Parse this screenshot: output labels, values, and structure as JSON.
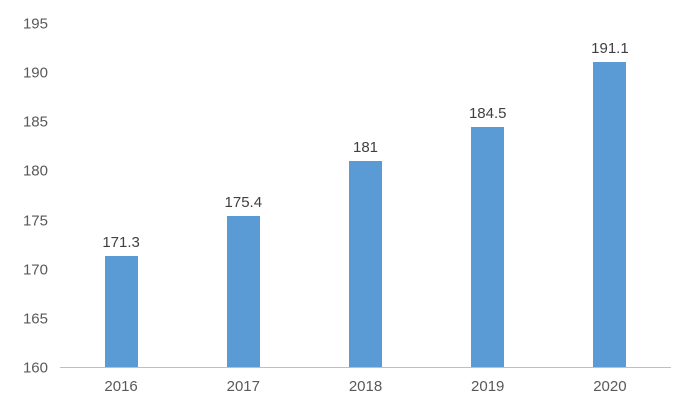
{
  "chart_data": {
    "type": "bar",
    "title": "",
    "categories": [
      "2016",
      "2017",
      "2018",
      "2019",
      "2020"
    ],
    "values": [
      171.3,
      175.4,
      181,
      184.5,
      191.1
    ],
    "value_labels": [
      "171.3",
      "175.4",
      "181",
      "184.5",
      "191.1"
    ],
    "ylim": [
      160,
      195
    ],
    "yticks": [
      160,
      165,
      170,
      175,
      180,
      185,
      190,
      195
    ],
    "bar_color": "#5B9BD5",
    "axis_line_color": "#BFBFBF",
    "tick_text_color": "#595959",
    "data_label_color": "#404040",
    "grid": false,
    "legend": false
  }
}
